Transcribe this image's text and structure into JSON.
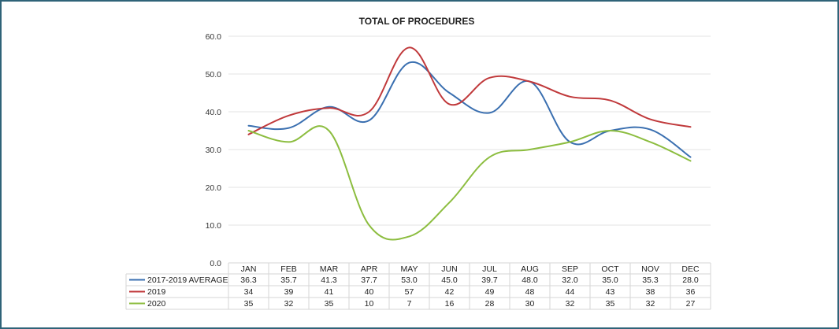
{
  "chart_data": {
    "type": "line",
    "title": "TOTAL OF PROCEDURES",
    "categories": [
      "JAN",
      "FEB",
      "MAR",
      "APR",
      "MAY",
      "JUN",
      "JUL",
      "AUG",
      "SEP",
      "OCT",
      "NOV",
      "DEC"
    ],
    "ylim": [
      0,
      60
    ],
    "yticks": [
      "0.0",
      "10.0",
      "20.0",
      "30.0",
      "40.0",
      "50.0",
      "60.0"
    ],
    "series": [
      {
        "name": "2017-2019 AVERAGE",
        "color": "#3a6fb0",
        "values": [
          36.3,
          35.7,
          41.3,
          37.7,
          53.0,
          45.0,
          39.7,
          48.0,
          32.0,
          35.0,
          35.3,
          28.0
        ],
        "labels": [
          "36.3",
          "35.7",
          "41.3",
          "37.7",
          "53.0",
          "45.0",
          "39.7",
          "48.0",
          "32.0",
          "35.0",
          "35.3",
          "28.0"
        ]
      },
      {
        "name": "2019",
        "color": "#c0393b",
        "values": [
          34,
          39,
          41,
          40,
          57,
          42,
          49,
          48,
          44,
          43,
          38,
          36
        ],
        "labels": [
          "34",
          "39",
          "41",
          "40",
          "57",
          "42",
          "49",
          "48",
          "44",
          "43",
          "38",
          "36"
        ]
      },
      {
        "name": "2020",
        "color": "#8cbd3f",
        "values": [
          35,
          32,
          35,
          10,
          7,
          16,
          28,
          30,
          32,
          35,
          32,
          27
        ],
        "labels": [
          "35",
          "32",
          "35",
          "10",
          "7",
          "16",
          "28",
          "30",
          "32",
          "35",
          "32",
          "27"
        ]
      }
    ],
    "legend": "table-below"
  }
}
